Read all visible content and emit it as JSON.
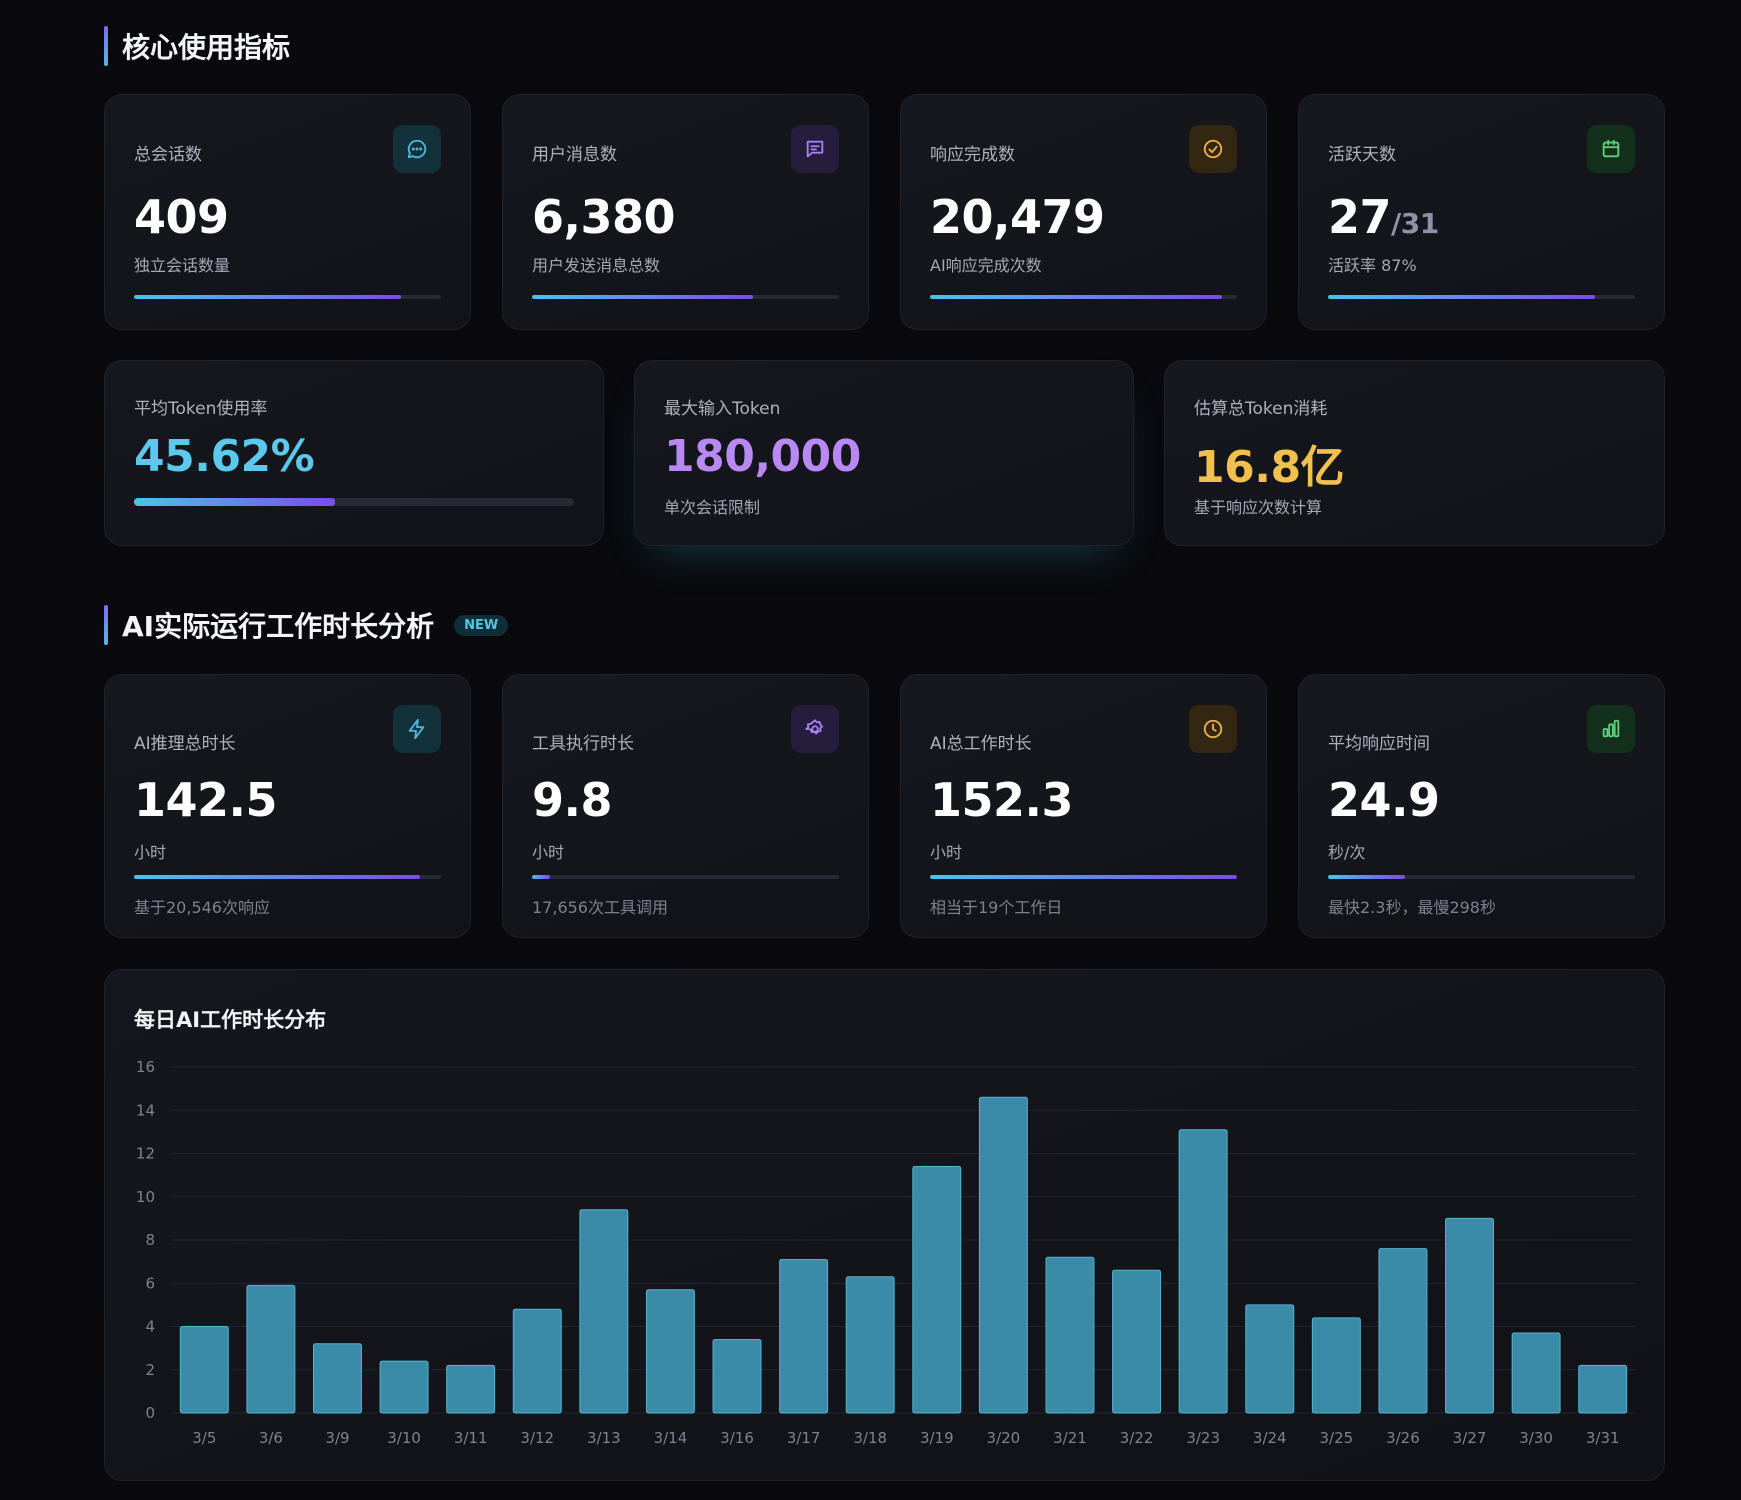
{
  "section1": {
    "title": "核心使用指标"
  },
  "metrics_top": [
    {
      "label": "总会话数",
      "value": "409",
      "sub": "独立会话数量",
      "progress": 0.87,
      "icon": "chat-icon",
      "accent": "#52b7d6",
      "icon_bg": "#12313a"
    },
    {
      "label": "用户消息数",
      "value": "6,380",
      "sub": "用户发送消息总数",
      "progress": 0.72,
      "icon": "message-icon",
      "accent": "#a582f0",
      "icon_bg": "#261d3c"
    },
    {
      "label": "响应完成数",
      "value": "20,479",
      "sub": "AI响应完成次数",
      "progress": 0.95,
      "icon": "check-circle-icon",
      "accent": "#e8b04c",
      "icon_bg": "#332712"
    },
    {
      "label": "活跃天数",
      "value": "27",
      "value_suffix": "/31",
      "sub": "活跃率 87%",
      "progress": 0.87,
      "icon": "calendar-icon",
      "accent": "#5fcf7d",
      "icon_bg": "#13301d"
    }
  ],
  "metrics_token": [
    {
      "label": "平均Token使用率",
      "value": "45.62%",
      "color": "#5bc8ec",
      "progress": 0.4562
    },
    {
      "label": "最大输入Token",
      "value": "180,000",
      "sub": "单次会话限制",
      "color": "#b889f2"
    },
    {
      "label": "估算总Token消耗",
      "value": "16.8亿",
      "sub": "基于响应次数计算",
      "color": "#f1c04f"
    }
  ],
  "section2": {
    "title": "AI实际运行工作时长分析",
    "badge": "NEW"
  },
  "metrics_time": [
    {
      "label": "AI推理总时长",
      "value": "142.5",
      "sub": "小时",
      "foot": "基于20,546次响应",
      "progress": 0.93,
      "icon": "lightning-icon",
      "accent": "#52b7d6",
      "icon_bg": "#12313a"
    },
    {
      "label": "工具执行时长",
      "value": "9.8",
      "sub": "小时",
      "foot": "17,656次工具调用",
      "progress": 0.06,
      "icon": "gear-icon",
      "accent": "#a582f0",
      "icon_bg": "#261d3c"
    },
    {
      "label": "AI总工作时长",
      "value": "152.3",
      "sub": "小时",
      "foot": "相当于19个工作日",
      "progress": 1.0,
      "icon": "clock-icon",
      "accent": "#e8b04c",
      "icon_bg": "#332712"
    },
    {
      "label": "平均响应时间",
      "value": "24.9",
      "sub": "秒/次",
      "foot": "最快2.3秒，最慢298秒",
      "progress": 0.25,
      "icon": "bar-chart-icon",
      "accent": "#5fcf7d",
      "icon_bg": "#13301d"
    }
  ],
  "chart_data": {
    "type": "bar",
    "title": "每日AI工作时长分布",
    "categories": [
      "3/5",
      "3/6",
      "3/9",
      "3/10",
      "3/11",
      "3/12",
      "3/13",
      "3/14",
      "3/16",
      "3/17",
      "3/18",
      "3/19",
      "3/20",
      "3/21",
      "3/22",
      "3/23",
      "3/24",
      "3/25",
      "3/26",
      "3/27",
      "3/30",
      "3/31"
    ],
    "values": [
      4.0,
      5.9,
      3.2,
      2.4,
      2.2,
      4.8,
      9.4,
      5.7,
      3.4,
      7.1,
      6.3,
      11.4,
      14.6,
      7.2,
      6.6,
      13.1,
      5.0,
      4.4,
      7.6,
      9.0,
      3.7,
      2.2
    ],
    "ylim": [
      0,
      16
    ],
    "yticks": [
      0,
      2,
      4,
      6,
      8,
      10,
      12,
      14,
      16
    ],
    "xlabel": "",
    "ylabel": "",
    "bar_color": "#3a8ba8"
  }
}
